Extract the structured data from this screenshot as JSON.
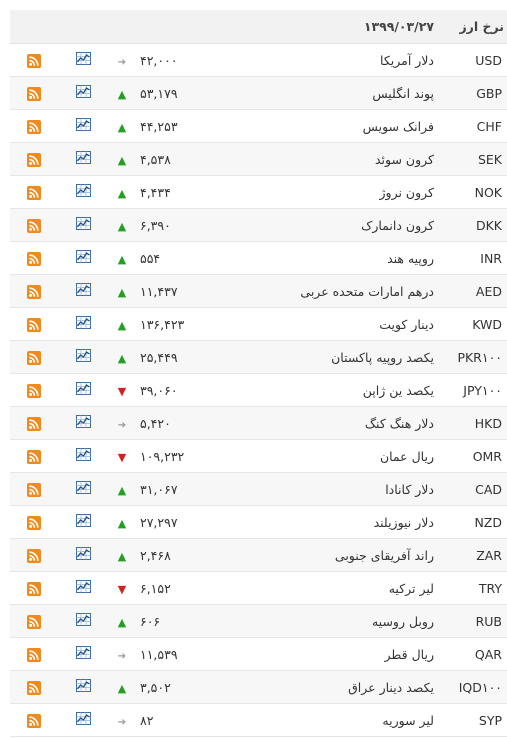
{
  "header": {
    "title": "نرخ ارز",
    "date": "۱۳۹۹/۰۳/۲۷"
  },
  "colors": {
    "up": "#22a022",
    "down": "#d12121",
    "flat": "#999999",
    "rss": "#f08a1c"
  },
  "icons": {
    "up": "arrow-up-icon",
    "down": "arrow-down-icon",
    "flat": "arrow-right-icon",
    "chart": "chart-icon",
    "rss": "rss-icon"
  },
  "rows": [
    {
      "code": "USD",
      "name": "دلار آمریکا",
      "price": "۴۲,۰۰۰",
      "trend": "flat"
    },
    {
      "code": "GBP",
      "name": "پوند انگلیس",
      "price": "۵۳,۱۷۹",
      "trend": "up"
    },
    {
      "code": "CHF",
      "name": "فرانک سویس",
      "price": "۴۴,۲۵۳",
      "trend": "up"
    },
    {
      "code": "SEK",
      "name": "کرون سوئد",
      "price": "۴,۵۳۸",
      "trend": "up"
    },
    {
      "code": "NOK",
      "name": "کرون نروژ",
      "price": "۴,۴۳۴",
      "trend": "up"
    },
    {
      "code": "DKK",
      "name": "کرون دانمارک",
      "price": "۶,۳۹۰",
      "trend": "up"
    },
    {
      "code": "INR",
      "name": "روپیه هند",
      "price": "۵۵۴",
      "trend": "up"
    },
    {
      "code": "AED",
      "name": "درهم امارات متحده عربی",
      "price": "۱۱,۴۳۷",
      "trend": "up"
    },
    {
      "code": "KWD",
      "name": "دینار کویت",
      "price": "۱۳۶,۴۲۳",
      "trend": "up"
    },
    {
      "code": "PKR۱۰۰",
      "name": "یکصد روپیه پاکستان",
      "price": "۲۵,۴۴۹",
      "trend": "up"
    },
    {
      "code": "JPY۱۰۰",
      "name": "یکصد ین ژاپن",
      "price": "۳۹,۰۶۰",
      "trend": "down"
    },
    {
      "code": "HKD",
      "name": "دلار هنگ کنگ",
      "price": "۵,۴۲۰",
      "trend": "flat"
    },
    {
      "code": "OMR",
      "name": "ریال عمان",
      "price": "۱۰۹,۲۳۲",
      "trend": "down"
    },
    {
      "code": "CAD",
      "name": "دلار کانادا",
      "price": "۳۱,۰۶۷",
      "trend": "up"
    },
    {
      "code": "NZD",
      "name": "دلار نیوزیلند",
      "price": "۲۷,۲۹۷",
      "trend": "up"
    },
    {
      "code": "ZAR",
      "name": "راند آفریقای جنوبی",
      "price": "۲,۴۶۸",
      "trend": "up"
    },
    {
      "code": "TRY",
      "name": "لیر ترکیه",
      "price": "۶,۱۵۲",
      "trend": "down"
    },
    {
      "code": "RUB",
      "name": "روبل روسیه",
      "price": "۶۰۶",
      "trend": "up"
    },
    {
      "code": "QAR",
      "name": "ریال قطر",
      "price": "۱۱,۵۳۹",
      "trend": "flat"
    },
    {
      "code": "IQD۱۰۰",
      "name": "یکصد دینار عراق",
      "price": "۳,۵۰۲",
      "trend": "up"
    },
    {
      "code": "SYP",
      "name": "لیر سوریه",
      "price": "۸۲",
      "trend": "flat"
    }
  ]
}
